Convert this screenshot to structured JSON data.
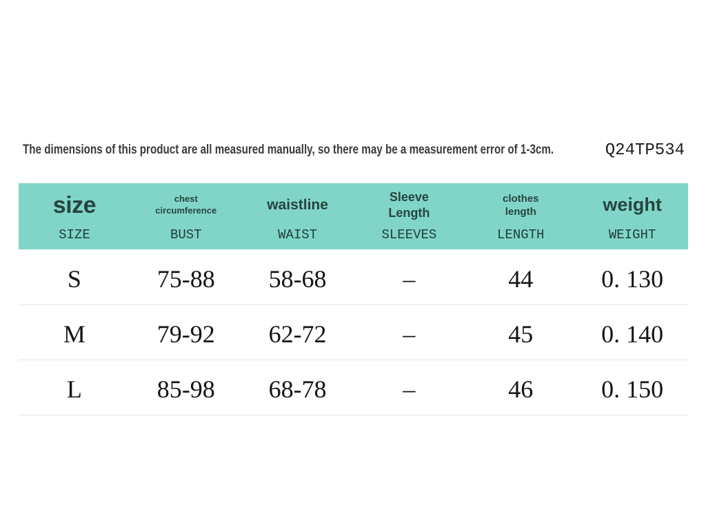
{
  "note": {
    "disclaimer": "The dimensions of this product are all measured manually, so there may be a measurement error of 1-3cm.",
    "product_code": "Q24TP534"
  },
  "colors": {
    "header_background": "#80d5c8",
    "header_text": "#27443f",
    "body_text": "#141414",
    "divider": "#e4e4e4",
    "page_background": "#ffffff"
  },
  "table": {
    "columns": [
      {
        "primary": "size",
        "secondary": "SIZE"
      },
      {
        "primary": "chest\ncircumference",
        "secondary": "BUST"
      },
      {
        "primary": "waistline",
        "secondary": "WAIST"
      },
      {
        "primary": "Sleeve\nLength",
        "secondary": "SLEEVES"
      },
      {
        "primary": "clothes\nlength",
        "secondary": "LENGTH"
      },
      {
        "primary": "weight",
        "secondary": "WEIGHT"
      }
    ],
    "rows": [
      {
        "cells": [
          "S",
          "75-88",
          "58-68",
          "–",
          "44",
          "0. 130"
        ]
      },
      {
        "cells": [
          "M",
          "79-92",
          "62-72",
          "–",
          "45",
          "0. 140"
        ]
      },
      {
        "cells": [
          "L",
          "85-98",
          "68-78",
          "–",
          "46",
          "0. 150"
        ]
      }
    ]
  },
  "chart_data": {
    "type": "table",
    "columns": [
      "size / SIZE",
      "chest circumference / BUST",
      "waistline / WAIST",
      "Sleeve Length / SLEEVES",
      "clothes length / LENGTH",
      "weight / WEIGHT"
    ],
    "rows": [
      [
        "S",
        "75-88",
        "58-68",
        "–",
        "44",
        "0. 130"
      ],
      [
        "M",
        "79-92",
        "62-72",
        "–",
        "45",
        "0. 140"
      ],
      [
        "L",
        "85-98",
        "68-78",
        "–",
        "46",
        "0. 150"
      ]
    ],
    "annotations": [
      "The dimensions of this product are all measured manually, so there may be a measurement error of 1-3cm.",
      "Q24TP534"
    ],
    "layout_hints": {
      "header_background": "#80d5c8",
      "grid": "horizontal row dividers only",
      "units": "cm for measurements, kg for weight"
    }
  }
}
